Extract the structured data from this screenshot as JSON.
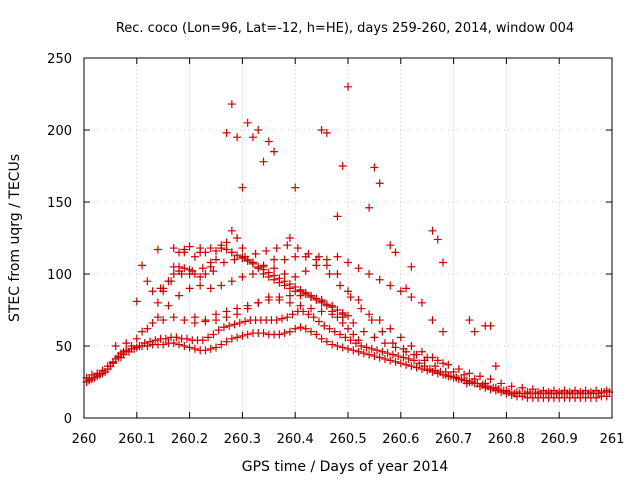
{
  "chart_data": {
    "type": "scatter",
    "title": "Rec. coco (Lon=96, Lat=-12, h=HE), days 259-260, 2014, window 004",
    "xlabel": "GPS time / Days of year 2014",
    "ylabel": "STEC from uqrg / TECUs",
    "xlim": [
      260,
      261
    ],
    "ylim": [
      0,
      250
    ],
    "xticks": [
      260,
      260.1,
      260.2,
      260.3,
      260.4,
      260.5,
      260.6,
      260.7,
      260.8,
      260.9,
      261
    ],
    "xtick_labels": [
      "260",
      "260.1",
      "260.2",
      "260.3",
      "260.4",
      "260.5",
      "260.6",
      "260.7",
      "260.8",
      "260.9",
      "261"
    ],
    "yticks": [
      0,
      50,
      100,
      150,
      200,
      250
    ],
    "ytick_labels": [
      "0",
      "50",
      "100",
      "150",
      "200",
      "250"
    ],
    "grid": true,
    "marker": "plus",
    "color": "#cc0000",
    "series": [
      {
        "name": "STEC",
        "x": [
          260.005,
          260.01,
          260.015,
          260.02,
          260.025,
          260.03,
          260.035,
          260.04,
          260.045,
          260.05,
          260.055,
          260.06,
          260.065,
          260.07,
          260.075,
          260.08,
          260.09,
          260.1,
          260.11,
          260.12,
          260.13,
          260.14,
          260.15,
          260.16,
          260.17,
          260.18,
          260.19,
          260.2,
          260.21,
          260.22,
          260.23,
          260.24,
          260.25,
          260.26,
          260.27,
          260.28,
          260.29,
          260.3,
          260.31,
          260.32,
          260.33,
          260.34,
          260.35,
          260.36,
          260.37,
          260.38,
          260.39,
          260.4,
          260.41,
          260.42,
          260.43,
          260.44,
          260.45,
          260.46,
          260.47,
          260.48,
          260.49,
          260.5,
          260.51,
          260.52,
          260.53,
          260.54,
          260.55,
          260.56,
          260.57,
          260.58,
          260.59,
          260.6,
          260.61,
          260.62,
          260.63,
          260.64,
          260.65,
          260.66,
          260.67,
          260.68,
          260.69,
          260.7,
          260.71,
          260.72,
          260.73,
          260.74,
          260.75,
          260.76,
          260.77,
          260.78,
          260.79,
          260.8,
          260.81,
          260.82,
          260.83,
          260.84,
          260.85,
          260.86,
          260.87,
          260.88,
          260.89,
          260.9,
          260.91,
          260.92,
          260.93,
          260.94,
          260.95,
          260.96,
          260.97,
          260.98,
          260.99,
          260.005,
          260.015,
          260.025,
          260.035,
          260.045,
          260.055,
          260.065,
          260.075,
          260.085,
          260.095,
          260.105,
          260.115,
          260.125,
          260.135,
          260.145,
          260.155,
          260.165,
          260.175,
          260.185,
          260.195,
          260.205,
          260.215,
          260.225,
          260.235,
          260.245,
          260.255,
          260.265,
          260.275,
          260.285,
          260.295,
          260.305,
          260.315,
          260.325,
          260.335,
          260.345,
          260.355,
          260.365,
          260.375,
          260.385,
          260.395,
          260.405,
          260.415,
          260.425,
          260.435,
          260.445,
          260.455,
          260.465,
          260.475,
          260.485,
          260.495,
          260.505,
          260.515,
          260.525,
          260.535,
          260.545,
          260.555,
          260.565,
          260.575,
          260.585,
          260.595,
          260.605,
          260.615,
          260.625,
          260.635,
          260.645,
          260.655,
          260.665,
          260.675,
          260.685,
          260.695,
          260.705,
          260.715,
          260.725,
          260.735,
          260.745,
          260.755,
          260.765,
          260.775,
          260.785,
          260.795,
          260.805,
          260.815,
          260.825,
          260.835,
          260.845,
          260.855,
          260.865,
          260.875,
          260.885,
          260.895,
          260.905,
          260.915,
          260.925,
          260.935,
          260.945,
          260.955,
          260.965,
          260.975,
          260.985,
          260.995,
          260.01,
          260.03,
          260.05,
          260.07,
          260.09,
          260.11,
          260.13,
          260.15,
          260.17,
          260.19,
          260.21,
          260.23,
          260.25,
          260.27,
          260.29,
          260.31,
          260.33,
          260.35,
          260.37,
          260.39,
          260.41,
          260.43,
          260.45,
          260.47,
          260.49,
          260.51,
          260.53,
          260.55,
          260.57,
          260.59,
          260.61,
          260.63,
          260.65,
          260.67,
          260.69,
          260.71,
          260.73,
          260.75,
          260.77,
          260.79,
          260.81,
          260.83,
          260.85,
          260.87,
          260.89,
          260.91,
          260.93,
          260.95,
          260.97,
          260.99,
          260.06,
          260.08,
          260.1,
          260.12,
          260.14,
          260.16,
          260.18,
          260.2,
          260.22,
          260.24,
          260.26,
          260.28,
          260.3,
          260.32,
          260.34,
          260.36,
          260.38,
          260.4,
          260.42,
          260.44,
          260.46,
          260.48,
          260.5,
          260.52,
          260.54,
          260.56,
          260.58,
          260.6,
          260.62,
          260.64,
          260.66,
          260.68,
          260.7,
          260.72,
          260.74,
          260.76,
          260.78,
          260.8,
          260.82,
          260.84,
          260.86,
          260.88,
          260.9,
          260.92,
          260.94,
          260.96,
          260.98,
          260.14,
          260.15,
          260.16,
          260.17,
          260.18,
          260.19,
          260.2,
          260.21,
          260.22,
          260.23,
          260.24,
          260.25,
          260.26,
          260.27,
          260.28,
          260.29,
          260.3,
          260.31,
          260.32,
          260.33,
          260.34,
          260.35,
          260.36,
          260.37,
          260.38,
          260.39,
          260.4,
          260.41,
          260.42,
          260.43,
          260.44,
          260.45,
          260.46,
          260.47,
          260.48,
          260.49,
          260.5,
          260.51,
          260.52,
          260.145,
          260.165,
          260.185,
          260.205,
          260.225,
          260.245,
          260.265,
          260.285,
          260.305,
          260.325,
          260.345,
          260.365,
          260.385,
          260.405,
          260.425,
          260.445,
          260.465,
          260.485,
          260.505,
          260.525,
          260.545,
          260.565,
          260.585,
          260.605,
          260.625,
          260.645,
          260.665,
          260.685,
          260.705,
          260.725,
          260.17,
          260.18,
          260.19,
          260.2,
          260.21,
          260.22,
          260.23,
          260.24,
          260.25,
          260.26,
          260.27,
          260.28,
          260.29,
          260.3,
          260.31,
          260.32,
          260.33,
          260.34,
          260.35,
          260.36,
          260.37,
          260.38,
          260.39,
          260.4,
          260.41,
          260.42,
          260.43,
          260.44,
          260.45,
          260.46,
          260.47,
          260.48,
          260.49,
          260.5,
          260.21,
          260.23,
          260.25,
          260.27,
          260.29,
          260.31,
          260.33,
          260.35,
          260.37,
          260.39,
          260.41,
          260.43,
          260.45,
          260.47,
          260.49,
          260.1,
          260.11,
          260.12,
          260.13,
          260.14,
          260.15,
          260.16,
          260.17,
          260.18,
          260.19,
          260.2,
          260.22,
          260.24,
          260.26,
          260.28,
          260.3,
          260.32,
          260.34,
          260.36,
          260.38,
          260.4,
          260.42,
          260.44,
          260.46,
          260.48,
          260.5,
          260.52,
          260.54,
          260.56,
          260.58,
          260.6,
          260.62,
          260.64,
          260.66,
          260.68,
          260.27,
          260.28,
          260.29,
          260.3,
          260.31,
          260.32,
          260.33,
          260.34,
          260.35,
          260.36,
          260.39,
          260.4,
          260.45,
          260.46,
          260.48,
          260.49,
          260.5,
          260.54,
          260.55,
          260.56,
          260.58,
          260.59,
          260.61,
          260.62,
          260.66,
          260.67,
          260.68,
          260.73,
          260.74,
          260.76,
          260.77,
          260.78
        ],
        "y": [
          25,
          26,
          27,
          28,
          29,
          30,
          31,
          32,
          34,
          36,
          38,
          41,
          43,
          45,
          46,
          47,
          48,
          49,
          50,
          50,
          51,
          51,
          51,
          52,
          52,
          51,
          50,
          49,
          48,
          47,
          47,
          48,
          49,
          51,
          53,
          55,
          56,
          57,
          58,
          59,
          59,
          59,
          58,
          58,
          58,
          59,
          60,
          62,
          63,
          62,
          60,
          58,
          55,
          53,
          51,
          50,
          49,
          48,
          47,
          46,
          45,
          44,
          43,
          42,
          41,
          40,
          39,
          38,
          37,
          36,
          35,
          34,
          33,
          32,
          31,
          30,
          29,
          28,
          27,
          26,
          25,
          24,
          22,
          21,
          20,
          19,
          18,
          17,
          16,
          15,
          15,
          14,
          14,
          14,
          14,
          14,
          14,
          14,
          14,
          14,
          14,
          14,
          14,
          14,
          14,
          15,
          15,
          28,
          30,
          31,
          33,
          36,
          39,
          42,
          44,
          46,
          48,
          50,
          52,
          53,
          54,
          55,
          55,
          56,
          56,
          55,
          55,
          54,
          54,
          54,
          56,
          58,
          61,
          63,
          64,
          65,
          66,
          67,
          68,
          68,
          68,
          68,
          68,
          68,
          69,
          70,
          72,
          74,
          74,
          72,
          70,
          67,
          64,
          62,
          60,
          58,
          56,
          54,
          52,
          50,
          49,
          48,
          47,
          46,
          45,
          44,
          43,
          42,
          41,
          40,
          38,
          36,
          34,
          33,
          32,
          30,
          29,
          28,
          27,
          26,
          25,
          24,
          23,
          22,
          21,
          20,
          19,
          18,
          17,
          17,
          17,
          17,
          17,
          17,
          17,
          17,
          17,
          17,
          17,
          17,
          17,
          17,
          17,
          17,
          17,
          18,
          18,
          27,
          30,
          36,
          42,
          50,
          60,
          66,
          68,
          70,
          68,
          66,
          67,
          68,
          70,
          72,
          76,
          80,
          82,
          84,
          85,
          85,
          84,
          82,
          78,
          72,
          66,
          60,
          56,
          52,
          49,
          46,
          44,
          42,
          40,
          37,
          34,
          31,
          29,
          27,
          24,
          22,
          21,
          20,
          19,
          19,
          19,
          19,
          19,
          19,
          19,
          50,
          52,
          55,
          62,
          70,
          78,
          85,
          90,
          92,
          90,
          92,
          95,
          98,
          100,
          105,
          110,
          110,
          112,
          112,
          110,
          106,
          100,
          88,
          82,
          72,
          68,
          62,
          56,
          50,
          46,
          42,
          38,
          32,
          30,
          27,
          24,
          21,
          19,
          18,
          18,
          18,
          18,
          18,
          18,
          18,
          18,
          18,
          80,
          88,
          95,
          100,
          105,
          104,
          103,
          100,
          98,
          100,
          105,
          110,
          118,
          122,
          130,
          125,
          118,
          110,
          108,
          104,
          100,
          98,
          96,
          94,
          92,
          90,
          88,
          88,
          86,
          84,
          82,
          80,
          78,
          74,
          70,
          66,
          62,
          58,
          54,
          90,
          95,
          100,
          102,
          104,
          102,
          108,
          110,
          112,
          114,
          116,
          118,
          120,
          118,
          114,
          112,
          100,
          92,
          84,
          76,
          68,
          60,
          52,
          48,
          44,
          40,
          36,
          32,
          28,
          24,
          105,
          115,
          117,
          119,
          112,
          118,
          115,
          108,
          116,
          118,
          117,
          115,
          113,
          111,
          109,
          107,
          105,
          103,
          101,
          99,
          97,
          95,
          93,
          91,
          89,
          87,
          85,
          83,
          81,
          79,
          77,
          75,
          73,
          71,
          70,
          68,
          72,
          74,
          76,
          78,
          80,
          84,
          82,
          80,
          78,
          76,
          74,
          72,
          70,
          81,
          106,
          95,
          88,
          117,
          90,
          95,
          118,
          102,
          115,
          100,
          115,
          118,
          120,
          115,
          112,
          108,
          106,
          104,
          100,
          98,
          102,
          106,
          110,
          112,
          108,
          104,
          100,
          96,
          92,
          88,
          84,
          80,
          68,
          60,
          198,
          218,
          195,
          160,
          205,
          195,
          200,
          178,
          192,
          185,
          125,
          160,
          200,
          198,
          140,
          175,
          230,
          146,
          174,
          163,
          120,
          115,
          90,
          105,
          130,
          124,
          108,
          68,
          60,
          64,
          64,
          36
        ]
      }
    ]
  }
}
